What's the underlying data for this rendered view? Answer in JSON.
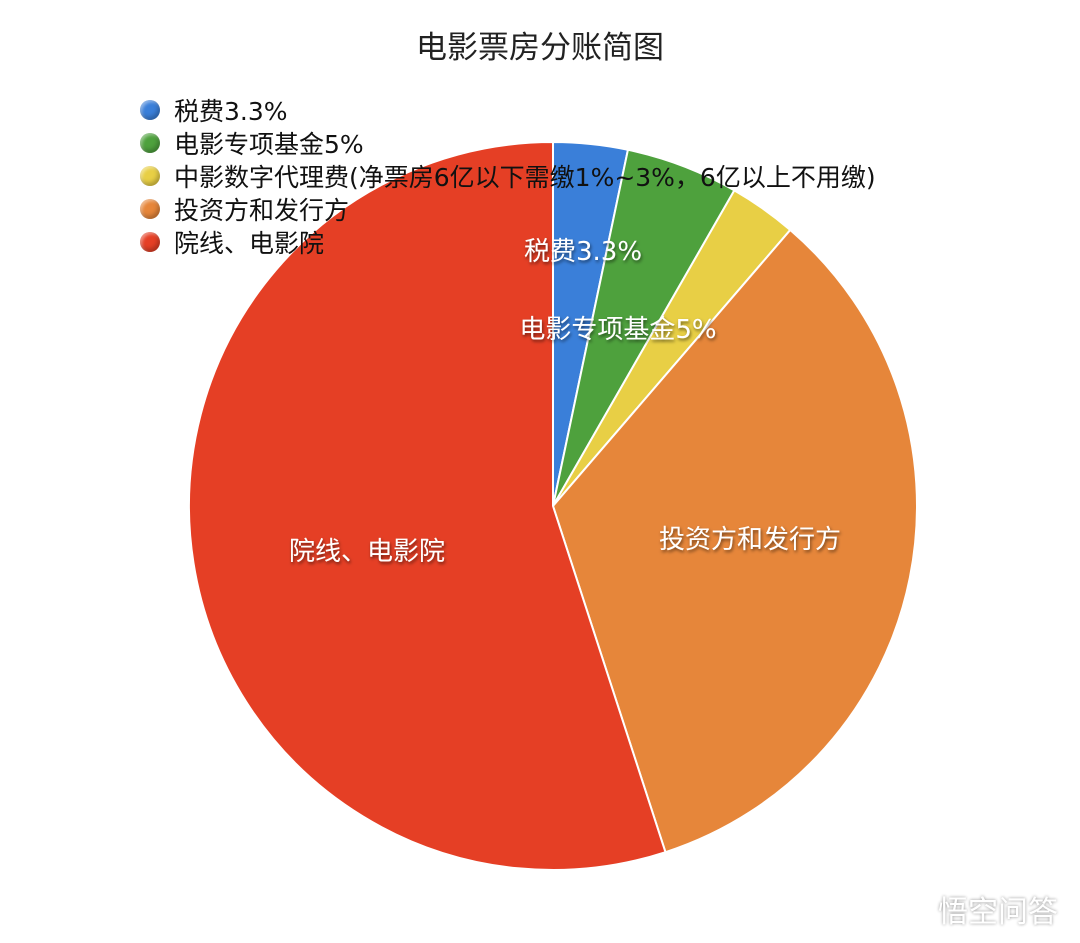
{
  "chart_data": {
    "type": "pie",
    "title": "电影票房分账简图",
    "legend_position": "top-left",
    "slices": [
      {
        "legend": "税费3.3%",
        "label": "税费3.3%",
        "value": 3.3,
        "color": "#3a7fd9"
      },
      {
        "legend": "电影专项基金5%",
        "label": "电影专项基金5%",
        "value": 5,
        "color": "#4ea13d"
      },
      {
        "legend": "中影数字代理费(净票房6亿以下需缴1%~3%，6亿以上不用缴)",
        "label": "",
        "value": 3,
        "color": "#e8cf45"
      },
      {
        "legend": "投资方和发行方",
        "label": "投资方和发行方",
        "value": 33.7,
        "color": "#e6863a"
      },
      {
        "legend": "院线、电影院",
        "label": "院线、电影院",
        "value": 55,
        "color": "#e53f25"
      }
    ]
  },
  "watermark": "悟空问答"
}
